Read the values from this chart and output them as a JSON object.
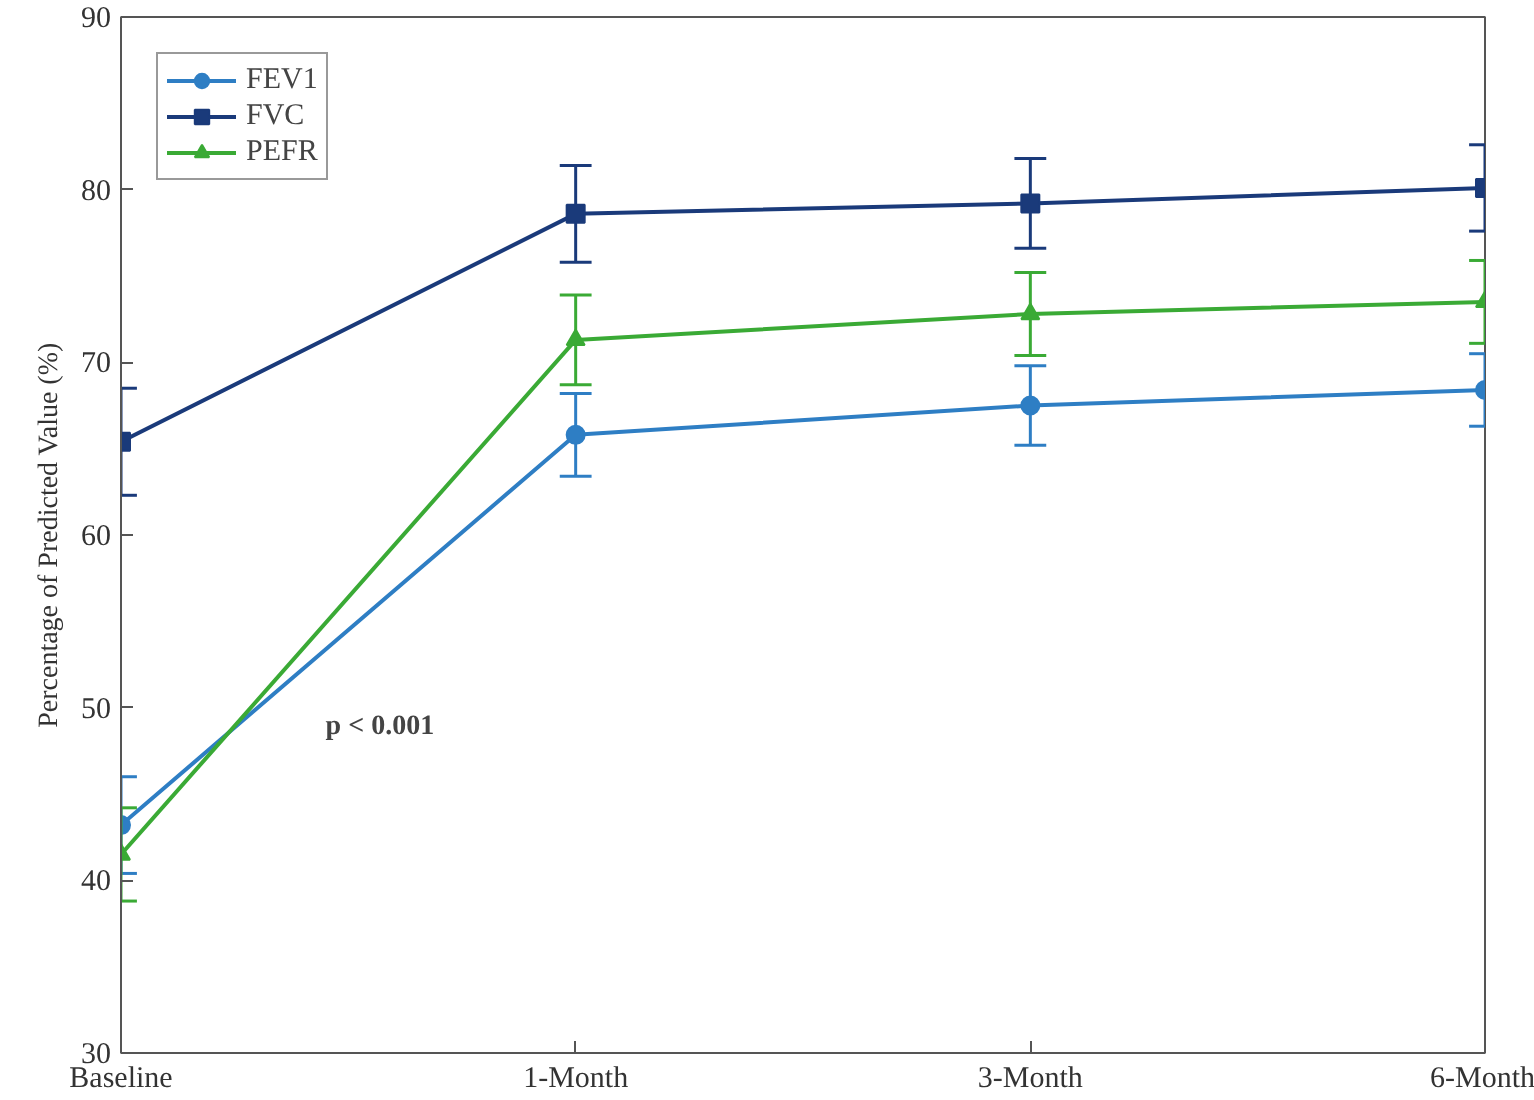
{
  "chart_data": {
    "type": "line",
    "categories": [
      "Baseline",
      "1-Month",
      "3-Month",
      "6-Month"
    ],
    "ylabel": "Percentage of Predicted Value (%)",
    "ylim": [
      30,
      90
    ],
    "yticks": [
      30,
      40,
      50,
      60,
      70,
      80,
      90
    ],
    "grid": false,
    "legend": "top left",
    "line_style": "solid",
    "annotations": [
      "p < 0.001"
    ],
    "series": [
      {
        "name": "FEV1",
        "color": "#2e7ec4",
        "marker": "circle",
        "values": [
          43.2,
          65.8,
          67.5,
          68.4
        ],
        "errors": [
          2.8,
          2.4,
          2.3,
          2.1
        ]
      },
      {
        "name": "FVC",
        "color": "#1a3a7a",
        "marker": "square",
        "values": [
          65.4,
          78.6,
          79.2,
          80.1
        ],
        "errors": [
          3.1,
          2.8,
          2.6,
          2.5
        ]
      },
      {
        "name": "PEFR",
        "color": "#3aaa35",
        "marker": "triangle",
        "values": [
          41.5,
          71.3,
          72.8,
          73.5
        ],
        "errors": [
          2.7,
          2.6,
          2.4,
          2.4
        ]
      }
    ]
  }
}
